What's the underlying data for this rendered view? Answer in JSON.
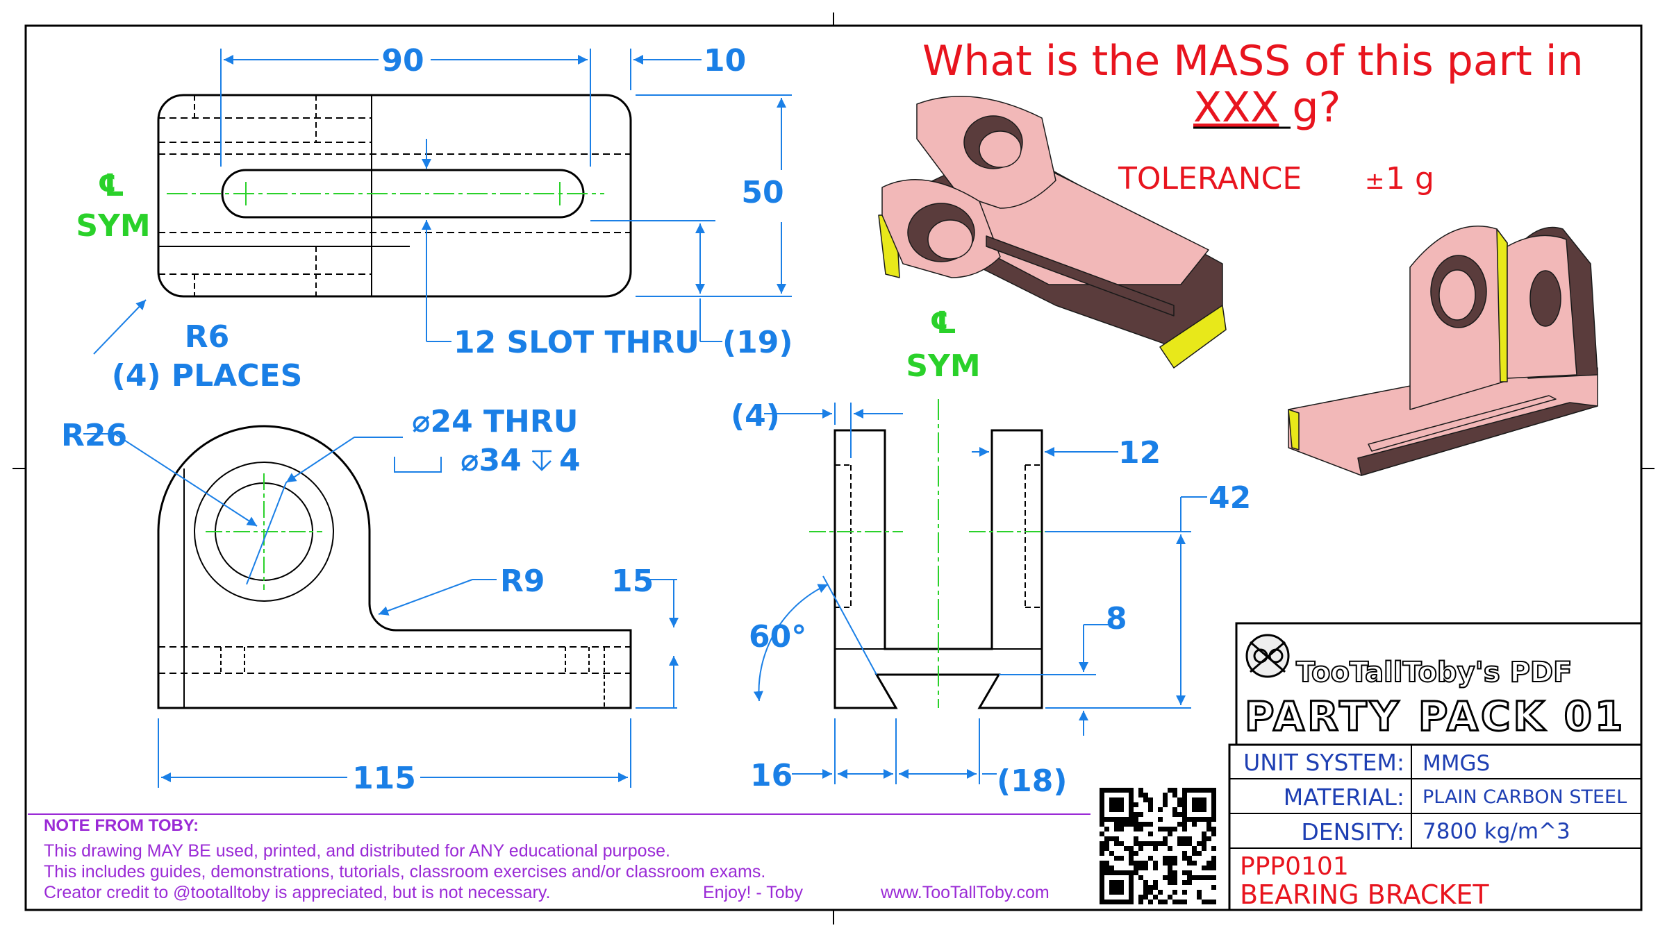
{
  "question": {
    "line1": "What is the MASS of this part in",
    "xxx": "XXX",
    "unit": " g?"
  },
  "tolerance": {
    "label": "TOLERANCE",
    "pm": "±",
    "value": "1 g"
  },
  "centerline": {
    "symbol": "℄",
    "sym": "SYM"
  },
  "top_view": {
    "d_90": "90",
    "d_10": "10",
    "d_50": "50",
    "d_19": "(19)",
    "r6": "R6",
    "places": "(4) PLACES",
    "slot": "12 SLOT THRU"
  },
  "front_view": {
    "r26": "R26",
    "hole": "⌀24 THRU",
    "cbore": "⌀34",
    "cbore_depth": "4",
    "r9": "R9",
    "d_15": "15",
    "d_115": "115"
  },
  "side_view": {
    "d_4": "(4)",
    "d_12": "12",
    "d_42": "42",
    "d_8": "8",
    "angle": "60°",
    "d_16": "16",
    "d_18": "(18)"
  },
  "title_block": {
    "logo": "TooTallToby's PDF",
    "pack": "PARTY PACK 01",
    "rows": [
      {
        "label": "UNIT SYSTEM:",
        "value": "MMGS"
      },
      {
        "label": "MATERIAL:",
        "value": "PLAIN CARBON STEEL"
      },
      {
        "label": "DENSITY:",
        "value": "7800 kg/m^3"
      }
    ],
    "part_no": "PPP0101",
    "part_name": "BEARING BRACKET"
  },
  "note": {
    "heading": "NOTE FROM TOBY:",
    "lines": [
      "This drawing MAY BE used, printed, and distributed for ANY educational purpose.",
      "This includes guides, demonstrations, tutorials, classroom exercises and/or classroom exams.",
      "Creator credit to @tootalltoby is appreciated, but is not necessary."
    ],
    "signoff": "Enjoy! - Toby",
    "website": "www.TooTallToby.com"
  },
  "colors": {
    "dimension": "#1a7fe6",
    "centerline": "#2ad12a",
    "question": "#e8141e",
    "note": "#9a2ad6",
    "part_face": "#f2b8b8",
    "part_dark": "#5a3c3c",
    "part_highlight": "#e8e81a"
  }
}
